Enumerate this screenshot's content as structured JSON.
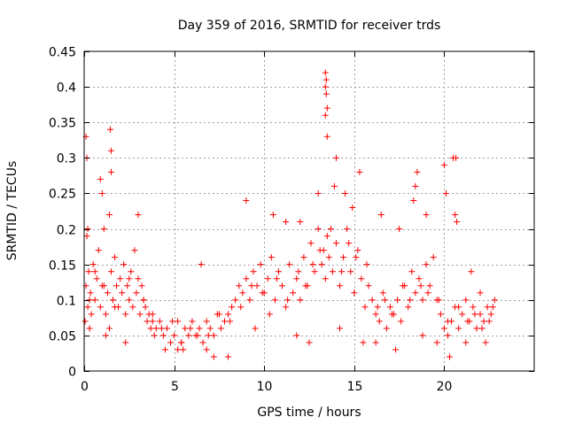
{
  "chart_data": {
    "type": "scatter",
    "title": "Day 359 of 2016, SRMTID for receiver trds",
    "xlabel": "GPS time / hours",
    "ylabel": "SRMTID / TECUs",
    "xlim": [
      0,
      25
    ],
    "ylim": [
      0,
      0.45
    ],
    "xticks": [
      0,
      5,
      10,
      15,
      20
    ],
    "xtick_labels": [
      "0",
      "5",
      "10",
      "15",
      "20"
    ],
    "yticks": [
      0,
      0.05,
      0.1,
      0.15,
      0.2,
      0.25,
      0.3,
      0.35,
      0.4,
      0.45
    ],
    "ytick_labels": [
      "0",
      "0.05",
      "0.1",
      "0.15",
      "0.2",
      "0.25",
      "0.3",
      "0.35",
      "0.4",
      "0.45"
    ],
    "grid": true,
    "marker": "plus",
    "color": "#ff0000",
    "series": [
      {
        "name": "SRMTID",
        "x": [
          0.05,
          0.1,
          0.15,
          0.2,
          0.25,
          0.3,
          0.35,
          0.4,
          0.5,
          0.6,
          0.7,
          0.8,
          0.9,
          1.0,
          1.1,
          1.2,
          1.3,
          1.4,
          1.5,
          1.6,
          1.7,
          1.8,
          1.9,
          2.0,
          2.1,
          2.2,
          2.3,
          2.4,
          2.5,
          2.6,
          2.7,
          2.8,
          2.9,
          3.0,
          3.1,
          3.2,
          3.3,
          3.4,
          3.5,
          3.6,
          3.7,
          3.8,
          3.9,
          4.0,
          4.2,
          4.4,
          4.6,
          4.8,
          5.0,
          5.2,
          5.4,
          5.6,
          5.8,
          6.0,
          6.2,
          6.4,
          6.6,
          6.8,
          7.0,
          7.2,
          7.4,
          7.6,
          7.8,
          8.0,
          8.2,
          8.4,
          8.6,
          8.8,
          9.0,
          9.2,
          9.4,
          9.6,
          9.8,
          10.0,
          10.2,
          10.4,
          10.6,
          10.8,
          11.0,
          11.2,
          11.4,
          11.6,
          11.8,
          12.0,
          12.2,
          12.4,
          12.6,
          12.8,
          13.0,
          13.2,
          13.3,
          13.4,
          13.5,
          13.6,
          13.8,
          14.0,
          14.2,
          14.4,
          14.6,
          14.8,
          15.0,
          15.2,
          15.4,
          15.6,
          15.8,
          16.0,
          16.2,
          16.4,
          16.6,
          16.8,
          17.0,
          17.2,
          17.4,
          17.6,
          17.8,
          18.0,
          18.2,
          18.4,
          18.6,
          18.8,
          19.0,
          19.2,
          19.4,
          19.6,
          19.8,
          20.0,
          20.2,
          20.4,
          20.6,
          20.8,
          21.0,
          21.2,
          21.4,
          21.6,
          21.8,
          22.0,
          22.2,
          22.4,
          22.6,
          22.8,
          0.1,
          0.15,
          0.2,
          0.9,
          1.0,
          1.4,
          1.45,
          1.5,
          1.5,
          3.0,
          5.2,
          6.5,
          8.0,
          9.0,
          10.5,
          11.2,
          12.0,
          13.0,
          13.4,
          13.4,
          13.4,
          13.45,
          13.45,
          13.5,
          13.5,
          13.9,
          14.0,
          14.5,
          14.9,
          15.3,
          16.5,
          17.5,
          18.3,
          18.4,
          18.5,
          19.0,
          20.0,
          20.1,
          20.5,
          20.6,
          20.65,
          20.7,
          21.5,
          22.0,
          1.2,
          2.3,
          4.5,
          5.5,
          6.8,
          7.2,
          9.5,
          10.3,
          11.8,
          12.5,
          14.2,
          15.5,
          16.2,
          17.3,
          18.8,
          19.6,
          20.3,
          21.2,
          22.3,
          0.3,
          0.6,
          1.1,
          1.7,
          2.5,
          3.3,
          3.8,
          4.3,
          4.9,
          5.4,
          5.9,
          6.3,
          6.9,
          7.5,
          8.1,
          8.7,
          9.3,
          9.9,
          10.7,
          11.3,
          11.9,
          12.3,
          12.7,
          13.1,
          13.7,
          14.3,
          14.7,
          15.1,
          15.7,
          16.3,
          16.7,
          17.1,
          17.7,
          18.1,
          18.7,
          19.1,
          19.7,
          20.2,
          20.8,
          21.3,
          21.7,
          22.1,
          22.5,
          22.7
        ],
        "y": [
          0.07,
          0.12,
          0.19,
          0.09,
          0.14,
          0.06,
          0.11,
          0.08,
          0.15,
          0.1,
          0.13,
          0.17,
          0.09,
          0.12,
          0.2,
          0.08,
          0.11,
          0.06,
          0.14,
          0.1,
          0.16,
          0.12,
          0.09,
          0.13,
          0.11,
          0.15,
          0.08,
          0.12,
          0.1,
          0.14,
          0.09,
          0.17,
          0.11,
          0.13,
          0.08,
          0.12,
          0.1,
          0.09,
          0.07,
          0.08,
          0.06,
          0.07,
          0.05,
          0.06,
          0.07,
          0.05,
          0.06,
          0.04,
          0.05,
          0.07,
          0.04,
          0.06,
          0.05,
          0.07,
          0.05,
          0.06,
          0.04,
          0.07,
          0.06,
          0.05,
          0.08,
          0.06,
          0.07,
          0.08,
          0.09,
          0.1,
          0.12,
          0.11,
          0.13,
          0.1,
          0.14,
          0.12,
          0.15,
          0.11,
          0.13,
          0.16,
          0.1,
          0.14,
          0.12,
          0.09,
          0.15,
          0.11,
          0.13,
          0.1,
          0.16,
          0.12,
          0.18,
          0.14,
          0.2,
          0.15,
          0.17,
          0.13,
          0.19,
          0.16,
          0.14,
          0.18,
          0.12,
          0.16,
          0.2,
          0.14,
          0.11,
          0.17,
          0.13,
          0.09,
          0.12,
          0.1,
          0.08,
          0.07,
          0.11,
          0.06,
          0.09,
          0.08,
          0.1,
          0.07,
          0.12,
          0.09,
          0.14,
          0.11,
          0.13,
          0.1,
          0.15,
          0.12,
          0.16,
          0.1,
          0.08,
          0.06,
          0.05,
          0.07,
          0.09,
          0.06,
          0.08,
          0.1,
          0.07,
          0.09,
          0.06,
          0.08,
          0.07,
          0.09,
          0.08,
          0.1,
          0.33,
          0.3,
          0.2,
          0.27,
          0.25,
          0.22,
          0.34,
          0.31,
          0.28,
          0.22,
          0.03,
          0.15,
          0.02,
          0.24,
          0.22,
          0.21,
          0.21,
          0.25,
          0.42,
          0.4,
          0.36,
          0.41,
          0.39,
          0.37,
          0.33,
          0.26,
          0.3,
          0.25,
          0.23,
          0.28,
          0.22,
          0.2,
          0.24,
          0.26,
          0.28,
          0.22,
          0.29,
          0.25,
          0.3,
          0.22,
          0.3,
          0.21,
          0.14,
          0.11,
          0.05,
          0.04,
          0.03,
          0.03,
          0.03,
          0.02,
          0.06,
          0.08,
          0.05,
          0.04,
          0.06,
          0.04,
          0.04,
          0.03,
          0.05,
          0.04,
          0.02,
          0.04,
          0.04,
          0.1,
          0.14,
          0.12,
          0.09,
          0.13,
          0.1,
          0.08,
          0.06,
          0.07,
          0.04,
          0.06,
          0.05,
          0.05,
          0.08,
          0.07,
          0.09,
          0.12,
          0.11,
          0.13,
          0.1,
          0.14,
          0.12,
          0.15,
          0.17,
          0.2,
          0.14,
          0.18,
          0.16,
          0.15,
          0.09,
          0.1,
          0.08,
          0.12,
          0.1,
          0.12,
          0.11,
          0.1,
          0.07,
          0.09,
          0.07,
          0.08,
          0.06,
          0.07,
          0.09
        ]
      }
    ]
  }
}
